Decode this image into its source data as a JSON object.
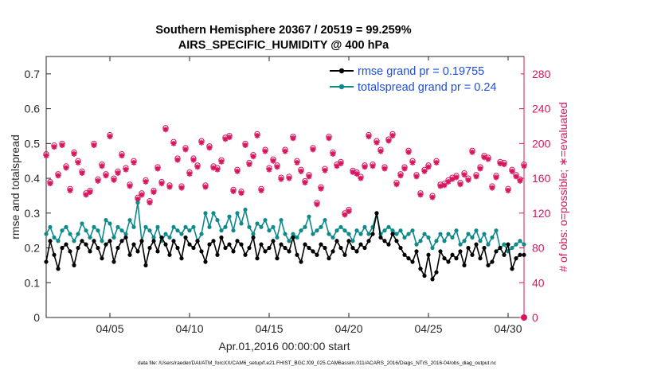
{
  "chart_data": {
    "type": "line",
    "title_line1": "Southern Hemisphere 20367 / 20519 = 99.259%",
    "title_line2": "AIRS_SPECIFIC_HUMIDITY @ 400 hPa",
    "xlabel": "Apr.01,2016 00:00:00 start",
    "ylabel_left": "rmse and totalspread",
    "ylabel_right": "# of obs: o=possible; ∗=evaluated",
    "footer": "data file: /Users/raeder/DAI/ATM_forcXX/CAM6_setup/f.e21.FHIST_BGC.f09_025.CAM6assim.011/ACARS_2016/Diags_NTrS_2016-04/obs_diag_output.nc",
    "xlim": [
      1,
      31
    ],
    "x_ticks": [
      5,
      10,
      15,
      20,
      25,
      30
    ],
    "x_tick_labels": [
      "04/05",
      "04/10",
      "04/15",
      "04/20",
      "04/25",
      "04/30"
    ],
    "ylim_left": [
      0,
      0.75
    ],
    "y_ticks_left": [
      0,
      0.1,
      0.2,
      0.3,
      0.4,
      0.5,
      0.6,
      0.7
    ],
    "y_tick_labels_left": [
      "0",
      "0.1",
      "0.2",
      "0.3",
      "0.4",
      "0.5",
      "0.6",
      "0.7"
    ],
    "ylim_right": [
      0,
      300
    ],
    "y_ticks_right": [
      0,
      40,
      80,
      120,
      160,
      200,
      240,
      280
    ],
    "y_tick_labels_right": [
      "0",
      "40",
      "80",
      "120",
      "160",
      "200",
      "240",
      "280"
    ],
    "legend": [
      {
        "label": "rmse grand pr = 0.19755",
        "color": "#000000"
      },
      {
        "label": "totalspread grand pr = 0.24",
        "color": "#0f8a8a"
      }
    ],
    "colors": {
      "rmse": "#000000",
      "spread": "#0f8a8a",
      "obs": "#d9155f",
      "legend_text": "#1f4fd6"
    },
    "x": [
      1.0,
      1.25,
      1.5,
      1.75,
      2.0,
      2.25,
      2.5,
      2.75,
      3.0,
      3.25,
      3.5,
      3.75,
      4.0,
      4.25,
      4.5,
      4.75,
      5.0,
      5.25,
      5.5,
      5.75,
      6.0,
      6.25,
      6.5,
      6.75,
      7.0,
      7.25,
      7.5,
      7.75,
      8.0,
      8.25,
      8.5,
      8.75,
      9.0,
      9.25,
      9.5,
      9.75,
      10.0,
      10.25,
      10.5,
      10.75,
      11.0,
      11.25,
      11.5,
      11.75,
      12.0,
      12.25,
      12.5,
      12.75,
      13.0,
      13.25,
      13.5,
      13.75,
      14.0,
      14.25,
      14.5,
      14.75,
      15.0,
      15.25,
      15.5,
      15.75,
      16.0,
      16.25,
      16.5,
      16.75,
      17.0,
      17.25,
      17.5,
      17.75,
      18.0,
      18.25,
      18.5,
      18.75,
      19.0,
      19.25,
      19.5,
      19.75,
      20.0,
      20.25,
      20.5,
      20.75,
      21.0,
      21.25,
      21.5,
      21.75,
      22.0,
      22.25,
      22.5,
      22.75,
      23.0,
      23.25,
      23.5,
      23.75,
      24.0,
      24.25,
      24.5,
      24.75,
      25.0,
      25.25,
      25.5,
      25.75,
      26.0,
      26.25,
      26.5,
      26.75,
      27.0,
      27.25,
      27.5,
      27.75,
      28.0,
      28.25,
      28.5,
      28.75,
      29.0,
      29.25,
      29.5,
      29.75,
      30.0,
      30.25,
      30.5,
      30.75,
      31.0
    ],
    "series": [
      {
        "name": "rmse",
        "values": [
          0.16,
          0.22,
          0.18,
          0.14,
          0.2,
          0.21,
          0.19,
          0.15,
          0.2,
          0.22,
          0.21,
          0.19,
          0.22,
          0.2,
          0.17,
          0.21,
          0.22,
          0.16,
          0.2,
          0.22,
          0.23,
          0.18,
          0.21,
          0.19,
          0.22,
          0.15,
          0.2,
          0.22,
          0.19,
          0.23,
          0.21,
          0.18,
          0.22,
          0.2,
          0.17,
          0.23,
          0.21,
          0.2,
          0.22,
          0.19,
          0.16,
          0.21,
          0.22,
          0.18,
          0.23,
          0.2,
          0.21,
          0.19,
          0.22,
          0.21,
          0.18,
          0.2,
          0.23,
          0.17,
          0.21,
          0.19,
          0.2,
          0.22,
          0.17,
          0.21,
          0.2,
          0.19,
          0.23,
          0.18,
          0.16,
          0.21,
          0.2,
          0.19,
          0.18,
          0.21,
          0.2,
          0.17,
          0.19,
          0.22,
          0.2,
          0.18,
          0.22,
          0.2,
          0.19,
          0.21,
          0.2,
          0.22,
          0.24,
          0.3,
          0.23,
          0.22,
          0.21,
          0.24,
          0.22,
          0.2,
          0.18,
          0.17,
          0.16,
          0.19,
          0.14,
          0.12,
          0.18,
          0.11,
          0.13,
          0.19,
          0.17,
          0.16,
          0.18,
          0.17,
          0.19,
          0.15,
          0.2,
          0.18,
          0.21,
          0.17,
          0.2,
          0.15,
          0.16,
          0.19,
          0.2,
          0.18,
          0.21,
          0.14,
          0.17,
          0.18,
          0.18
        ]
      },
      {
        "name": "totalspread",
        "values": [
          0.24,
          0.26,
          0.23,
          0.22,
          0.25,
          0.26,
          0.24,
          0.22,
          0.24,
          0.27,
          0.25,
          0.23,
          0.26,
          0.25,
          0.22,
          0.28,
          0.27,
          0.23,
          0.26,
          0.25,
          0.24,
          0.28,
          0.26,
          0.33,
          0.22,
          0.26,
          0.25,
          0.23,
          0.26,
          0.22,
          0.24,
          0.23,
          0.26,
          0.25,
          0.24,
          0.26,
          0.25,
          0.26,
          0.22,
          0.24,
          0.3,
          0.26,
          0.3,
          0.28,
          0.25,
          0.26,
          0.29,
          0.25,
          0.3,
          0.27,
          0.31,
          0.26,
          0.24,
          0.27,
          0.26,
          0.28,
          0.25,
          0.26,
          0.23,
          0.28,
          0.24,
          0.22,
          0.24,
          0.23,
          0.25,
          0.26,
          0.29,
          0.24,
          0.25,
          0.26,
          0.28,
          0.24,
          0.23,
          0.25,
          0.26,
          0.25,
          0.24,
          0.22,
          0.25,
          0.24,
          0.26,
          0.24,
          0.26,
          0.3,
          0.24,
          0.25,
          0.26,
          0.25,
          0.24,
          0.25,
          0.23,
          0.24,
          0.25,
          0.21,
          0.22,
          0.24,
          0.23,
          0.2,
          0.22,
          0.24,
          0.22,
          0.24,
          0.23,
          0.25,
          0.21,
          0.22,
          0.24,
          0.23,
          0.25,
          0.22,
          0.24,
          0.21,
          0.23,
          0.25,
          0.2,
          0.21,
          0.19,
          0.2,
          0.21,
          0.22,
          0.21
        ]
      },
      {
        "name": "obs_count",
        "values": [
          186,
          154,
          196,
          163,
          198,
          172,
          146,
          188,
          178,
          166,
          141,
          144,
          198,
          157,
          174,
          163,
          208,
          158,
          166,
          186,
          170,
          151,
          178,
          136,
          141,
          156,
          132,
          144,
          171,
          154,
          216,
          150,
          200,
          181,
          149,
          193,
          165,
          181,
          173,
          201,
          150,
          195,
          172,
          170,
          179,
          205,
          207,
          145,
          168,
          143,
          198,
          176,
          185,
          209,
          146,
          191,
          170,
          180,
          173,
          159,
          191,
          160,
          206,
          178,
          168,
          155,
          162,
          193,
          130,
          148,
          169,
          206,
          188,
          174,
          177,
          118,
          122,
          167,
          165,
          160,
          173,
          208,
          174,
          201,
          191,
          171,
          203,
          209,
          153,
          163,
          171,
          190,
          178,
          162,
          141,
          168,
          173,
          138,
          178,
          151,
          152,
          156,
          159,
          161,
          153,
          164,
          158,
          190,
          162,
          171,
          184,
          182,
          149,
          161,
          177,
          176,
          146,
          168,
          162,
          157,
          174
        ]
      }
    ]
  }
}
